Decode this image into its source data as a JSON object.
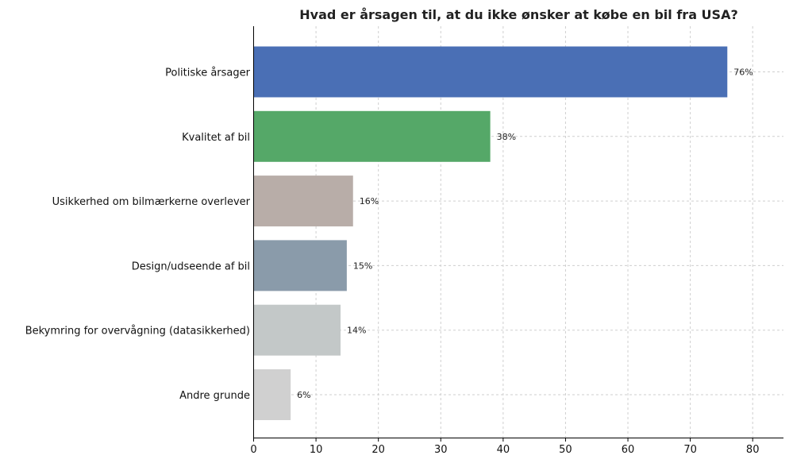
{
  "chart_data": {
    "type": "bar",
    "orientation": "horizontal",
    "title": "Hvad er årsagen til, at du ikke ønsker at købe en bil fra USA?",
    "xlabel": "",
    "ylabel": "",
    "xlim": [
      0,
      85
    ],
    "xticks": [
      0,
      10,
      20,
      30,
      40,
      50,
      60,
      70,
      80
    ],
    "grid": true,
    "categories": [
      "Politiske årsager",
      "Kvalitet af bil",
      "Usikkerhed om bilmærkerne overlever",
      "Design/udseende af bil",
      "Bekymring for overvågning (datasikkerhed)",
      "Andre grunde"
    ],
    "values": [
      76,
      38,
      16,
      15,
      14,
      6
    ],
    "value_labels": [
      "76%",
      "38%",
      "16%",
      "15%",
      "14%",
      "6%"
    ],
    "colors": [
      "#4a6fb5",
      "#55a868",
      "#b8ada8",
      "#8a9baa",
      "#c3c8c8",
      "#d0d0d0"
    ]
  }
}
